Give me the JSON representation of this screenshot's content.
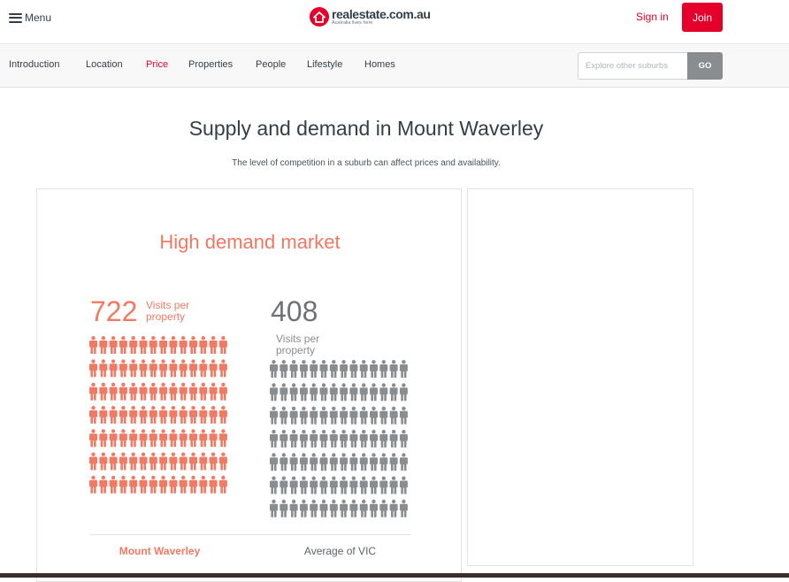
{
  "header": {
    "menu_label": "Menu",
    "logo_name": "realestate.com.au",
    "logo_tagline": "Australia lives here",
    "signin_label": "Sign in",
    "join_label": "Join"
  },
  "subnav": {
    "tabs": [
      {
        "label": "Introduction",
        "active": false
      },
      {
        "label": "Location",
        "active": false
      },
      {
        "label": "Price",
        "active": true
      },
      {
        "label": "Properties",
        "active": false
      },
      {
        "label": "People",
        "active": false
      },
      {
        "label": "Lifestyle",
        "active": false
      },
      {
        "label": "Homes",
        "active": false
      }
    ],
    "search_placeholder": "Explore other suburbs",
    "go_label": "GO"
  },
  "section": {
    "title": "Supply and demand in Mount Waverley",
    "subtitle": "The level of competition in a suburb can affect prices and availability."
  },
  "demand": {
    "market_label": "High demand market",
    "suburb": {
      "value": "722",
      "label": "Visits per property",
      "name": "Mount Waverley",
      "color": "#f07a63",
      "icon_rows": 7,
      "icons_per_row": 14
    },
    "average": {
      "value": "408",
      "label": "Visits per property",
      "name": "Average of VIC",
      "color": "#8a8d90",
      "icon_rows": 7,
      "icons_per_row": 14
    }
  },
  "colors": {
    "brand": "#e4002b",
    "active_tab": "#e4002b",
    "highlight": "#f07a63",
    "neutral": "#8a8d90"
  },
  "icons": {
    "menu": "hamburger-icon",
    "logo": "house-icon",
    "person": "person-icon"
  }
}
